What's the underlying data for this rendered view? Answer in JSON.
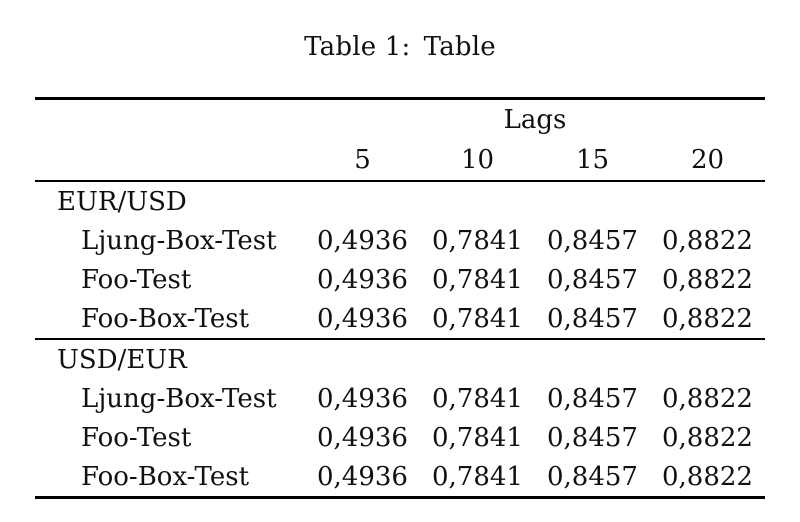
{
  "caption": "Table 1: Table",
  "table": {
    "header_group": "Lags",
    "columns": [
      "5",
      "10",
      "15",
      "20"
    ],
    "sections": [
      {
        "title": "EUR/USD",
        "rows": [
          {
            "label": "Ljung-Box-Test",
            "values": [
              "0,4936",
              "0,7841",
              "0,8457",
              "0,8822"
            ]
          },
          {
            "label": "Foo-Test",
            "values": [
              "0,4936",
              "0,7841",
              "0,8457",
              "0,8822"
            ]
          },
          {
            "label": "Foo-Box-Test",
            "values": [
              "0,4936",
              "0,7841",
              "0,8457",
              "0,8822"
            ]
          }
        ]
      },
      {
        "title": "USD/EUR",
        "rows": [
          {
            "label": "Ljung-Box-Test",
            "values": [
              "0,4936",
              "0,7841",
              "0,8457",
              "0,8822"
            ]
          },
          {
            "label": "Foo-Test",
            "values": [
              "0,4936",
              "0,7841",
              "0,8457",
              "0,8822"
            ]
          },
          {
            "label": "Foo-Box-Test",
            "values": [
              "0,4936",
              "0,7841",
              "0,8457",
              "0,8822"
            ]
          }
        ]
      }
    ]
  },
  "colors": {
    "text": "#111111",
    "rule": "#000000",
    "background": "#ffffff"
  }
}
